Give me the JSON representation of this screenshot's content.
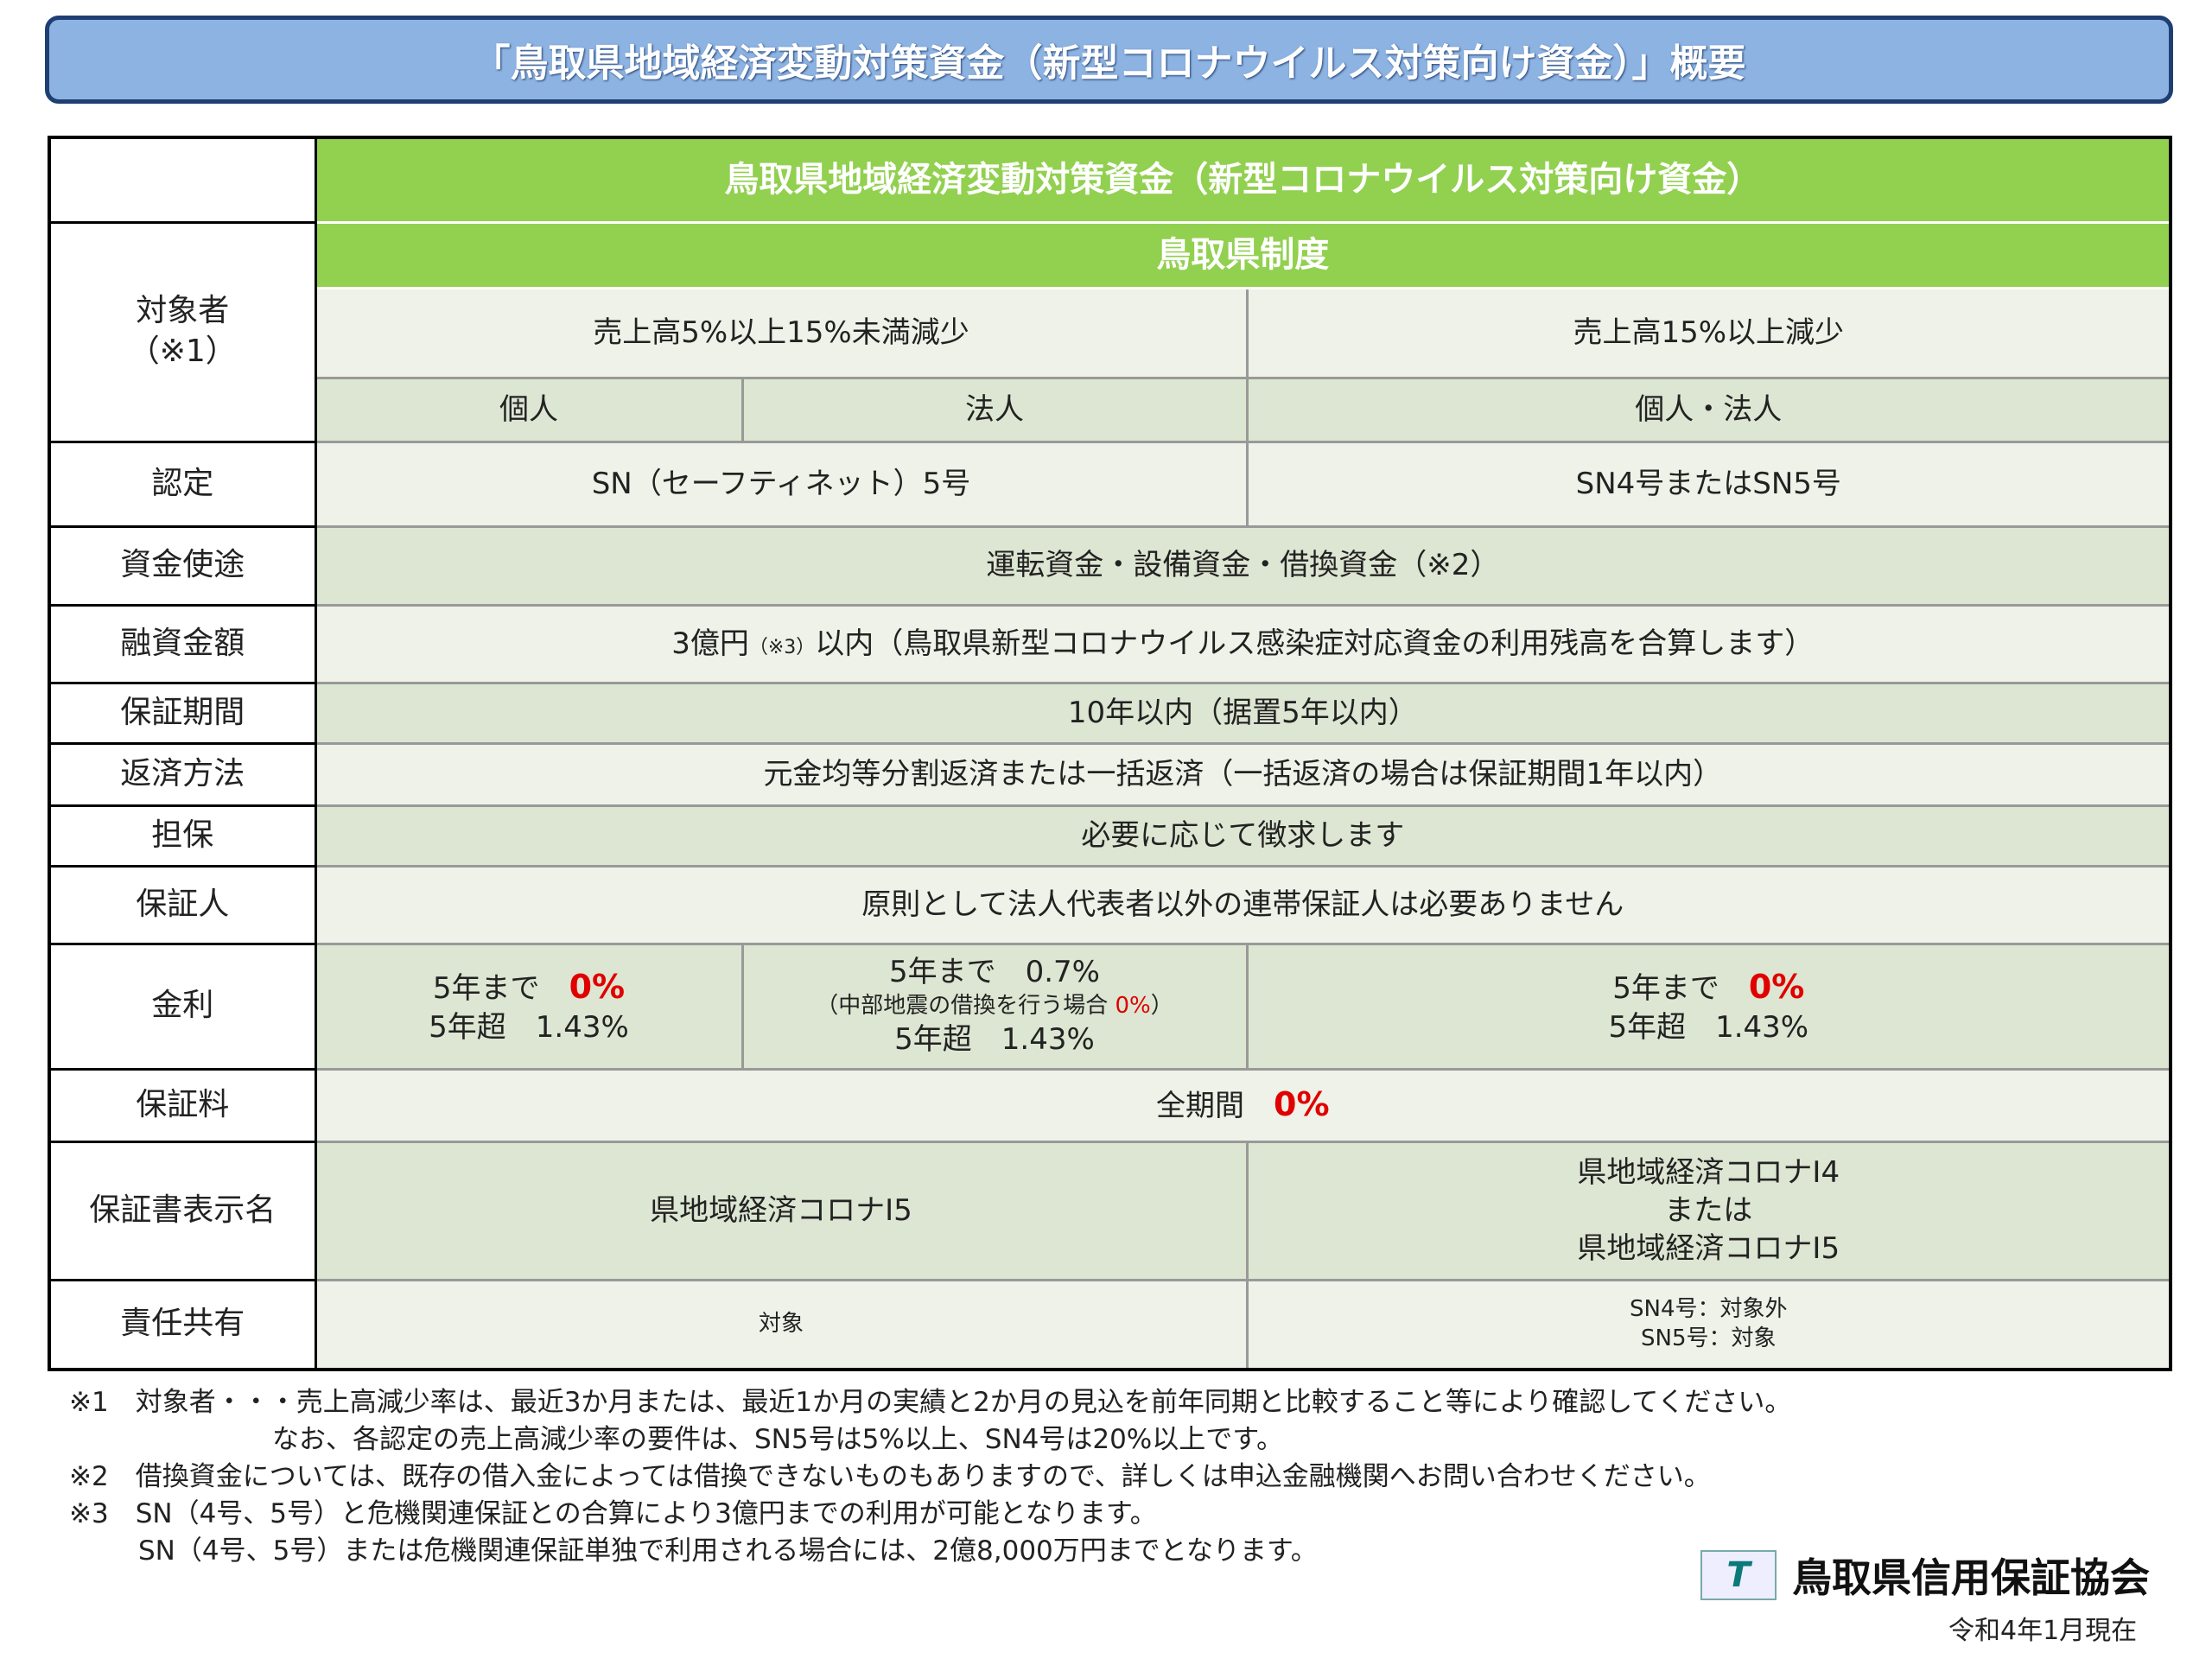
{
  "title": "「鳥取県地域経済変動対策資金（新型コロナウイルス対策向け資金）」概要",
  "table": {
    "header": "鳥取県地域経済変動対策資金（新型コロナウイルス対策向け資金）",
    "subheader": "鳥取県制度",
    "target_label": "対象者\n（※1）",
    "target_a": "売上高5%以上15%未満減少",
    "target_b": "売上高15%以上減少",
    "kojin": "個人",
    "hojin": "法人",
    "kojin_hojin": "個人・法人",
    "nintei_label": "認定",
    "nintei_a": "SN（セーフティネット）5号",
    "nintei_b": "SN4号またはSN5号",
    "shikin_label": "資金使途",
    "shikin": "運転資金・設備資金・借換資金（※2）",
    "yushi_label": "融資金額",
    "yushi_pre": "3億円",
    "yushi_note": "（※3）",
    "yushi_post": "以内（鳥取県新型コロナウイルス感染症対応資金の利用残高を合算します）",
    "kikan_label": "保証期間",
    "kikan": "10年以内（据置5年以内）",
    "hensai_label": "返済方法",
    "hensai": "元金均等分割返済または一括返済（一括返済の場合は保証期間1年以内）",
    "tanpo_label": "担保",
    "tanpo": "必要に応じて徴求します",
    "hoshonin_label": "保証人",
    "hoshonin": "原則として法人代表者以外の連帯保証人は必要ありません",
    "kinri_label": "金利",
    "kinri_a1": "5年まで",
    "kinri_a1v": "0%",
    "kinri_a2": "5年超　1.43%",
    "kinri_b1": "5年まで　0.7%",
    "kinri_b2": "（中部地震の借換を行う場合",
    "kinri_b2v": "0%",
    "kinri_b2c": "）",
    "kinri_b3": "5年超　1.43%",
    "kinri_c1": "5年まで",
    "kinri_c1v": "0%",
    "kinri_c2": "5年超　1.43%",
    "ryo_label": "保証料",
    "ryo": "全期間",
    "ryo_v": "0%",
    "hyoji_label": "保証書表示名",
    "hyoji_a": "県地域経済コロナⅠ5",
    "hyoji_b1": "県地域経済コロナⅠ4",
    "hyoji_b2": "または",
    "hyoji_b3": "県地域経済コロナⅠ5",
    "sekinin_label": "責任共有",
    "sekinin_a": "対象",
    "sekinin_b1": "SN4号：対象外",
    "sekinin_b2": "SN5号：対象"
  },
  "notes": [
    "※1　対象者・・・売上高減少率は、最近3か月または、最近1か月の実績と2か月の見込を前年同期と比較すること等により確認してください。",
    "なお、各認定の売上高減少率の要件は、SN5号は5%以上、SN4号は20%以上です。",
    "※2　借換資金については、既存の借入金によっては借換できないものもありますので、詳しくは申込金融機関へお問い合わせください。",
    "※3　SN（4号、5号）と危機関連保証との合算により3億円までの利用が可能となります。",
    "SN（4号、5号）または危機関連保証単独で利用される場合には、2億8,000万円までとなります。"
  ],
  "logo": {
    "mark": "T",
    "name": "鳥取県信用保証協会"
  },
  "date": "令和4年1月現在"
}
